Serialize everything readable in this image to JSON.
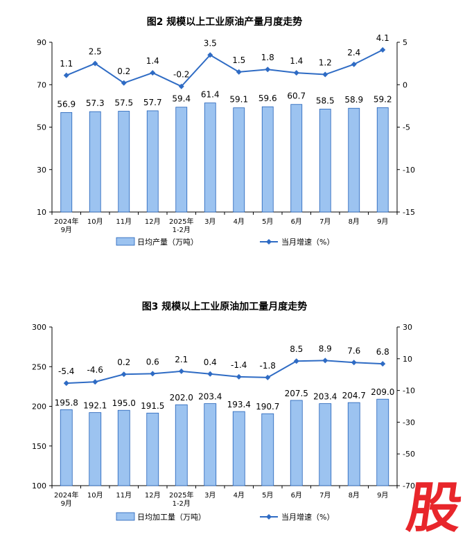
{
  "watermark": "股",
  "colors": {
    "bar_fill": "#9cc3f0",
    "bar_stroke": "#1f5fb8",
    "line": "#2e6bc4",
    "axis": "#000000"
  },
  "chart_data": [
    {
      "type": "bar",
      "title": "图2  规模以上工业原油产量月度走势",
      "categories": [
        "2024年\n9月",
        "10月",
        "11月",
        "12月",
        "2025年\n1-2月",
        "3月",
        "4月",
        "5月",
        "6月",
        "7月",
        "8月",
        "9月"
      ],
      "series": [
        {
          "name": "日均产量（万吨）",
          "kind": "bar",
          "axis": "left",
          "values": [
            56.9,
            57.3,
            57.5,
            57.7,
            59.4,
            61.4,
            59.1,
            59.6,
            60.7,
            58.5,
            58.9,
            59.2
          ]
        },
        {
          "name": "当月增速（%）",
          "kind": "line",
          "axis": "right",
          "values": [
            1.1,
            2.5,
            0.2,
            1.4,
            -0.2,
            3.5,
            1.5,
            1.8,
            1.4,
            1.2,
            2.4,
            4.1
          ]
        }
      ],
      "ylim": [
        10,
        90
      ],
      "yticks": [
        10,
        30,
        50,
        70,
        90
      ],
      "y2lim": [
        -15,
        5
      ],
      "y2ticks": [
        -15,
        -10,
        -5,
        0,
        5
      ],
      "legend": "bottom"
    },
    {
      "type": "bar",
      "title": "图3  规模以上工业原油加工量月度走势",
      "categories": [
        "2024年\n9月",
        "10月",
        "11月",
        "12月",
        "2025年\n1-2月",
        "3月",
        "4月",
        "5月",
        "6月",
        "7月",
        "8月",
        "9月"
      ],
      "series": [
        {
          "name": "日均加工量（万吨）",
          "kind": "bar",
          "axis": "left",
          "values": [
            195.8,
            192.1,
            195.0,
            191.5,
            202.0,
            203.4,
            193.4,
            190.7,
            207.5,
            203.4,
            204.7,
            209.0
          ]
        },
        {
          "name": "当月增速（%）",
          "kind": "line",
          "axis": "right",
          "values": [
            -5.4,
            -4.6,
            0.2,
            0.6,
            2.1,
            0.4,
            -1.4,
            -1.8,
            8.5,
            8.9,
            7.6,
            6.8
          ]
        }
      ],
      "ylim": [
        100,
        300
      ],
      "yticks": [
        100,
        150,
        200,
        250,
        300
      ],
      "y2lim": [
        -70,
        30
      ],
      "y2ticks": [
        -70,
        -50,
        -30,
        -10,
        10,
        30
      ],
      "legend": "bottom"
    }
  ]
}
